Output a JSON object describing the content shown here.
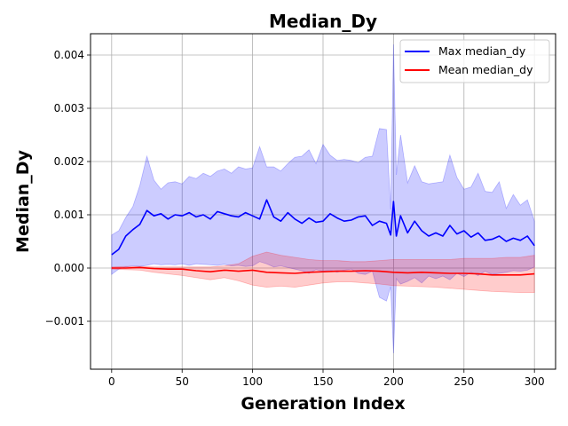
{
  "chart_data": {
    "type": "line",
    "title": "Median_Dy",
    "xlabel": "Generation Index",
    "ylabel": "Median_Dy",
    "xlim": [
      -15,
      315
    ],
    "ylim": [
      -0.0019,
      0.0044
    ],
    "x_ticks": [
      0,
      50,
      100,
      150,
      200,
      250,
      300
    ],
    "x_tick_labels": [
      "0",
      "50",
      "100",
      "150",
      "200",
      "250",
      "300"
    ],
    "y_ticks": [
      -0.001,
      0.0,
      0.001,
      0.002,
      0.003,
      0.004
    ],
    "y_tick_labels": [
      "−0.001",
      "0.000",
      "0.001",
      "0.002",
      "0.003",
      "0.004"
    ],
    "grid": true,
    "legend_position": "top-right",
    "series": [
      {
        "name": "Max median_dy",
        "color": "#0000ff",
        "band_color": "#0000ff",
        "band_opacity": 0.2,
        "x": [
          0,
          5,
          10,
          15,
          20,
          25,
          30,
          35,
          40,
          45,
          50,
          55,
          60,
          65,
          70,
          75,
          80,
          85,
          90,
          95,
          100,
          105,
          110,
          115,
          120,
          125,
          130,
          135,
          140,
          145,
          150,
          155,
          160,
          165,
          170,
          175,
          180,
          185,
          190,
          195,
          198,
          200,
          202,
          205,
          210,
          215,
          220,
          225,
          230,
          235,
          240,
          245,
          250,
          255,
          260,
          265,
          270,
          275,
          280,
          285,
          290,
          295,
          300
        ],
        "values": [
          0.00025,
          0.00035,
          0.0006,
          0.00072,
          0.00082,
          0.00108,
          0.00098,
          0.00102,
          0.00092,
          0.001,
          0.00098,
          0.00104,
          0.00096,
          0.001,
          0.00092,
          0.00106,
          0.00102,
          0.00098,
          0.00096,
          0.00104,
          0.00098,
          0.00092,
          0.00128,
          0.00096,
          0.00088,
          0.00104,
          0.00092,
          0.00084,
          0.00094,
          0.00086,
          0.00088,
          0.00102,
          0.00094,
          0.00088,
          0.0009,
          0.00096,
          0.00098,
          0.0008,
          0.00088,
          0.00084,
          0.00062,
          0.00125,
          0.0006,
          0.00098,
          0.00066,
          0.00088,
          0.0007,
          0.0006,
          0.00066,
          0.0006,
          0.0008,
          0.00064,
          0.0007,
          0.00058,
          0.00066,
          0.00052,
          0.00054,
          0.0006,
          0.0005,
          0.00056,
          0.00052,
          0.0006,
          0.00042
        ],
        "lower": [
          -0.00012,
          -2e-05,
          2e-05,
          4e-05,
          3e-05,
          5e-05,
          8e-05,
          6e-05,
          7e-05,
          6e-05,
          8e-05,
          5e-05,
          8e-05,
          7e-05,
          6e-05,
          5e-05,
          7e-05,
          4e-05,
          5e-05,
          3e-05,
          4e-05,
          0.00012,
          8e-05,
          2e-05,
          4e-05,
          1e-05,
          -2e-05,
          -5e-05,
          -0.0001,
          -3e-05,
          -6e-05,
          -4e-05,
          -8e-05,
          -4e-05,
          -2e-05,
          -0.0001,
          -0.00012,
          -6e-05,
          -0.00055,
          -0.00062,
          -0.00035,
          -0.0016,
          -0.0002,
          -0.0003,
          -0.00025,
          -0.00018,
          -0.00028,
          -0.00015,
          -0.0002,
          -0.00015,
          -0.00022,
          -0.0001,
          -0.00016,
          -8e-05,
          -0.00014,
          -6e-05,
          -0.00012,
          -0.0001,
          -8e-05,
          -5e-05,
          -6e-05,
          -4e-05,
          2e-05
        ],
        "upper": [
          0.00062,
          0.0007,
          0.00095,
          0.00115,
          0.00155,
          0.0021,
          0.00165,
          0.00148,
          0.0016,
          0.00162,
          0.00158,
          0.00172,
          0.00168,
          0.00178,
          0.00172,
          0.00182,
          0.00186,
          0.00178,
          0.0019,
          0.00186,
          0.00188,
          0.00228,
          0.0019,
          0.0019,
          0.00182,
          0.00196,
          0.00208,
          0.0021,
          0.00222,
          0.00196,
          0.00232,
          0.00212,
          0.00202,
          0.00204,
          0.00202,
          0.00198,
          0.00208,
          0.0021,
          0.00262,
          0.0026,
          0.0011,
          0.0042,
          0.00175,
          0.0025,
          0.0016,
          0.00192,
          0.00162,
          0.00158,
          0.0016,
          0.00162,
          0.00212,
          0.0017,
          0.00148,
          0.00152,
          0.00178,
          0.00144,
          0.00142,
          0.00162,
          0.00112,
          0.00138,
          0.00118,
          0.00128,
          0.00088
        ]
      },
      {
        "name": "Mean median_dy",
        "color": "#ff0000",
        "band_color": "#ff0000",
        "band_opacity": 0.2,
        "x": [
          0,
          10,
          20,
          30,
          40,
          50,
          60,
          70,
          80,
          90,
          100,
          110,
          120,
          130,
          140,
          150,
          160,
          170,
          180,
          190,
          200,
          210,
          220,
          230,
          240,
          250,
          260,
          270,
          280,
          290,
          300
        ],
        "values": [
          0.0,
          0.0,
          1e-05,
          -1e-05,
          -2e-05,
          -2e-05,
          -5e-05,
          -7e-05,
          -4e-05,
          -6e-05,
          -4e-05,
          -8e-05,
          -9e-05,
          -0.0001,
          -8e-05,
          -7e-05,
          -6e-05,
          -6e-05,
          -5e-05,
          -6e-05,
          -8e-05,
          -9e-05,
          -8e-05,
          -9e-05,
          -0.0001,
          -0.0001,
          -0.00011,
          -0.00013,
          -0.00013,
          -0.00013,
          -0.00011
        ],
        "lower": [
          -2e-05,
          -3e-05,
          -4e-05,
          -8e-05,
          -0.00011,
          -0.00014,
          -0.00018,
          -0.00022,
          -0.00018,
          -0.00024,
          -0.00032,
          -0.00036,
          -0.00034,
          -0.00036,
          -0.00032,
          -0.00028,
          -0.00026,
          -0.00026,
          -0.00028,
          -0.0003,
          -0.00033,
          -0.00034,
          -0.00035,
          -0.00036,
          -0.00038,
          -0.0004,
          -0.00042,
          -0.00044,
          -0.00045,
          -0.00046,
          -0.00046
        ],
        "upper": [
          2e-05,
          3e-05,
          3e-05,
          2e-05,
          2e-05,
          2e-05,
          2e-05,
          2e-05,
          4e-05,
          8e-05,
          0.00022,
          0.0003,
          0.00024,
          0.0002,
          0.00016,
          0.00014,
          0.00014,
          0.00012,
          0.00012,
          0.00014,
          0.00016,
          0.00016,
          0.00016,
          0.00016,
          0.00016,
          0.00018,
          0.00018,
          0.00018,
          0.0002,
          0.0002,
          0.00024
        ]
      }
    ]
  }
}
